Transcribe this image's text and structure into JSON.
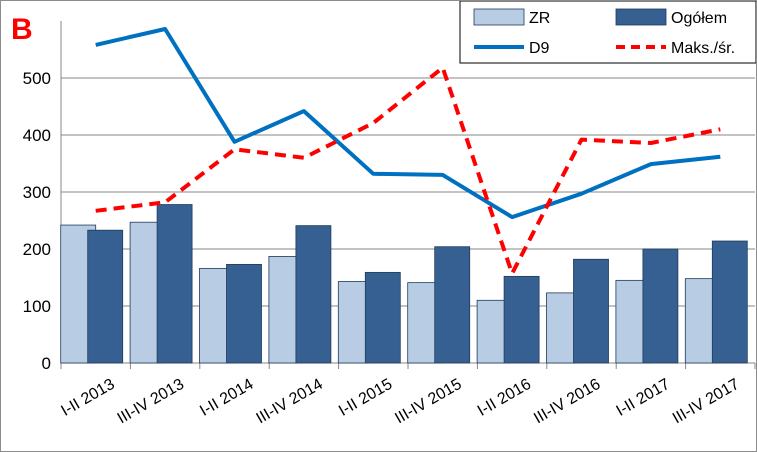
{
  "panel_label": "B",
  "chart_data": {
    "type": "bar",
    "categories": [
      "I-II 2013",
      "III-IV 2013",
      "I-II 2014",
      "III-IV 2014",
      "I-II 2015",
      "III-IV 2015",
      "I-II 2016",
      "III-IV 2016",
      "I-II 2017",
      "III-IV 2017"
    ],
    "ylim": [
      0,
      600
    ],
    "yticks": [
      0,
      100,
      200,
      300,
      400,
      500
    ],
    "grid": true,
    "legend_position": "top-right",
    "series": [
      {
        "name": "ZR",
        "kind": "bar",
        "color": "#b8cce4",
        "values": [
          242,
          247,
          166,
          187,
          143,
          141,
          110,
          123,
          145,
          148
        ]
      },
      {
        "name": "Ogółem",
        "kind": "bar",
        "color": "#366092",
        "values": [
          233,
          278,
          173,
          241,
          159,
          204,
          152,
          182,
          200,
          214
        ]
      },
      {
        "name": "D9",
        "kind": "line",
        "color": "#0070c0",
        "dashed": false,
        "values": [
          558,
          586,
          388,
          442,
          332,
          330,
          256,
          297,
          349,
          362
        ]
      },
      {
        "name": "Maks./śr.",
        "kind": "line",
        "color": "#ff0000",
        "dashed": true,
        "values": [
          267,
          282,
          375,
          360,
          421,
          518,
          157,
          392,
          386,
          410
        ]
      }
    ]
  }
}
